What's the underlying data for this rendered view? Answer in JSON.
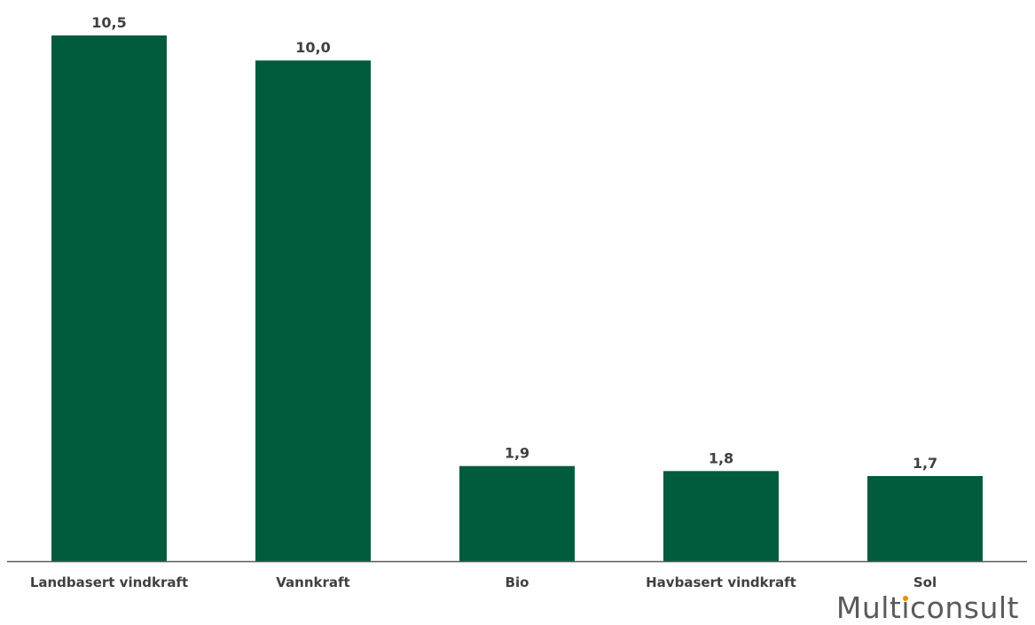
{
  "chart_data": {
    "type": "bar",
    "categories": [
      "Landbasert vindkraft",
      "Vannkraft",
      "Bio",
      "Havbasert vindkraft",
      "Sol"
    ],
    "values": [
      10.5,
      10.0,
      1.9,
      1.8,
      1.7
    ],
    "value_labels": [
      "10,5",
      "10,0",
      "1,9",
      "1,8",
      "1,7"
    ],
    "title": "",
    "xlabel": "",
    "ylabel": "",
    "ylim": [
      0,
      10.5
    ],
    "grid": false,
    "legend": "none",
    "bar_color": "#005c3c",
    "axis_color": "#5a5a5a",
    "label_color": "#404040"
  },
  "logo": {
    "pre": "Mult",
    "dotted": "ı",
    "post": "consult",
    "accent_color": "#f08c00"
  }
}
